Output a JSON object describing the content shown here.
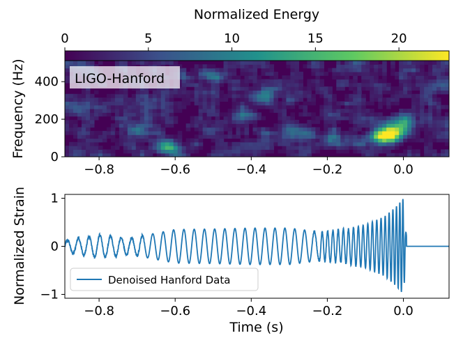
{
  "colorbar": {
    "title": "Normalized Energy",
    "ticks": [
      0,
      5,
      10,
      15,
      20
    ],
    "range": [
      0,
      23
    ],
    "colormap": [
      "#440154",
      "#3b528b",
      "#21918c",
      "#5ec962",
      "#fde725"
    ]
  },
  "chart_data": [
    {
      "type": "heatmap",
      "title": "",
      "annotation": "LIGO-Hanford",
      "xlabel": "",
      "ylabel": "Frequency (Hz)",
      "xlim": [
        -0.89,
        0.12
      ],
      "ylim": [
        0,
        512
      ],
      "xticks": [
        -0.8,
        -0.6,
        -0.4,
        -0.2,
        0.0
      ],
      "xtick_labels": [
        "−0.8",
        "−0.6",
        "−0.4",
        "−0.2",
        "0.0"
      ],
      "yticks": [
        0,
        200,
        400
      ],
      "ytick_labels": [
        "0",
        "200",
        "400"
      ],
      "value_label": "Normalized Energy",
      "hotspots": [
        {
          "t": -0.05,
          "f": 110,
          "energy": 22
        },
        {
          "t": -0.02,
          "f": 135,
          "energy": 16
        },
        {
          "t": 0.0,
          "f": 185,
          "energy": 12
        },
        {
          "t": -0.62,
          "f": 55,
          "energy": 11
        },
        {
          "t": -0.37,
          "f": 320,
          "energy": 10
        },
        {
          "t": -0.27,
          "f": 130,
          "energy": 8
        },
        {
          "t": -0.42,
          "f": 220,
          "energy": 7
        },
        {
          "t": -0.7,
          "f": 140,
          "energy": 6
        },
        {
          "t": -0.18,
          "f": 90,
          "energy": 6
        },
        {
          "t": -0.85,
          "f": 260,
          "energy": 5
        },
        {
          "t": -0.5,
          "f": 430,
          "energy": 5
        },
        {
          "t": 0.08,
          "f": 380,
          "energy": 5
        }
      ]
    },
    {
      "type": "line",
      "title": "",
      "xlabel": "Time (s)",
      "ylabel": "Normalized Strain",
      "xlim": [
        -0.89,
        0.12
      ],
      "ylim": [
        -1.08,
        1.08
      ],
      "xticks": [
        -0.8,
        -0.6,
        -0.4,
        -0.2,
        0.0
      ],
      "xtick_labels": [
        "−0.8",
        "−0.6",
        "−0.4",
        "−0.2",
        "0.0"
      ],
      "yticks": [
        -1,
        0,
        1
      ],
      "ytick_labels": [
        "−1",
        "0",
        "1"
      ],
      "series": [
        {
          "name": "Denoised Hanford Data",
          "color": "#1f77b4",
          "x": [
            -0.88,
            -0.8,
            -0.72,
            -0.6,
            -0.5,
            -0.4,
            -0.3,
            -0.22,
            -0.15,
            -0.1,
            -0.05,
            -0.02,
            0.0,
            0.01,
            0.12
          ],
          "y_envelope": [
            0.13,
            0.24,
            0.17,
            0.35,
            0.36,
            0.38,
            0.38,
            0.3,
            0.36,
            0.45,
            0.62,
            0.82,
            1.0,
            0.02,
            0.0
          ]
        }
      ],
      "legend": "lower-left"
    }
  ]
}
